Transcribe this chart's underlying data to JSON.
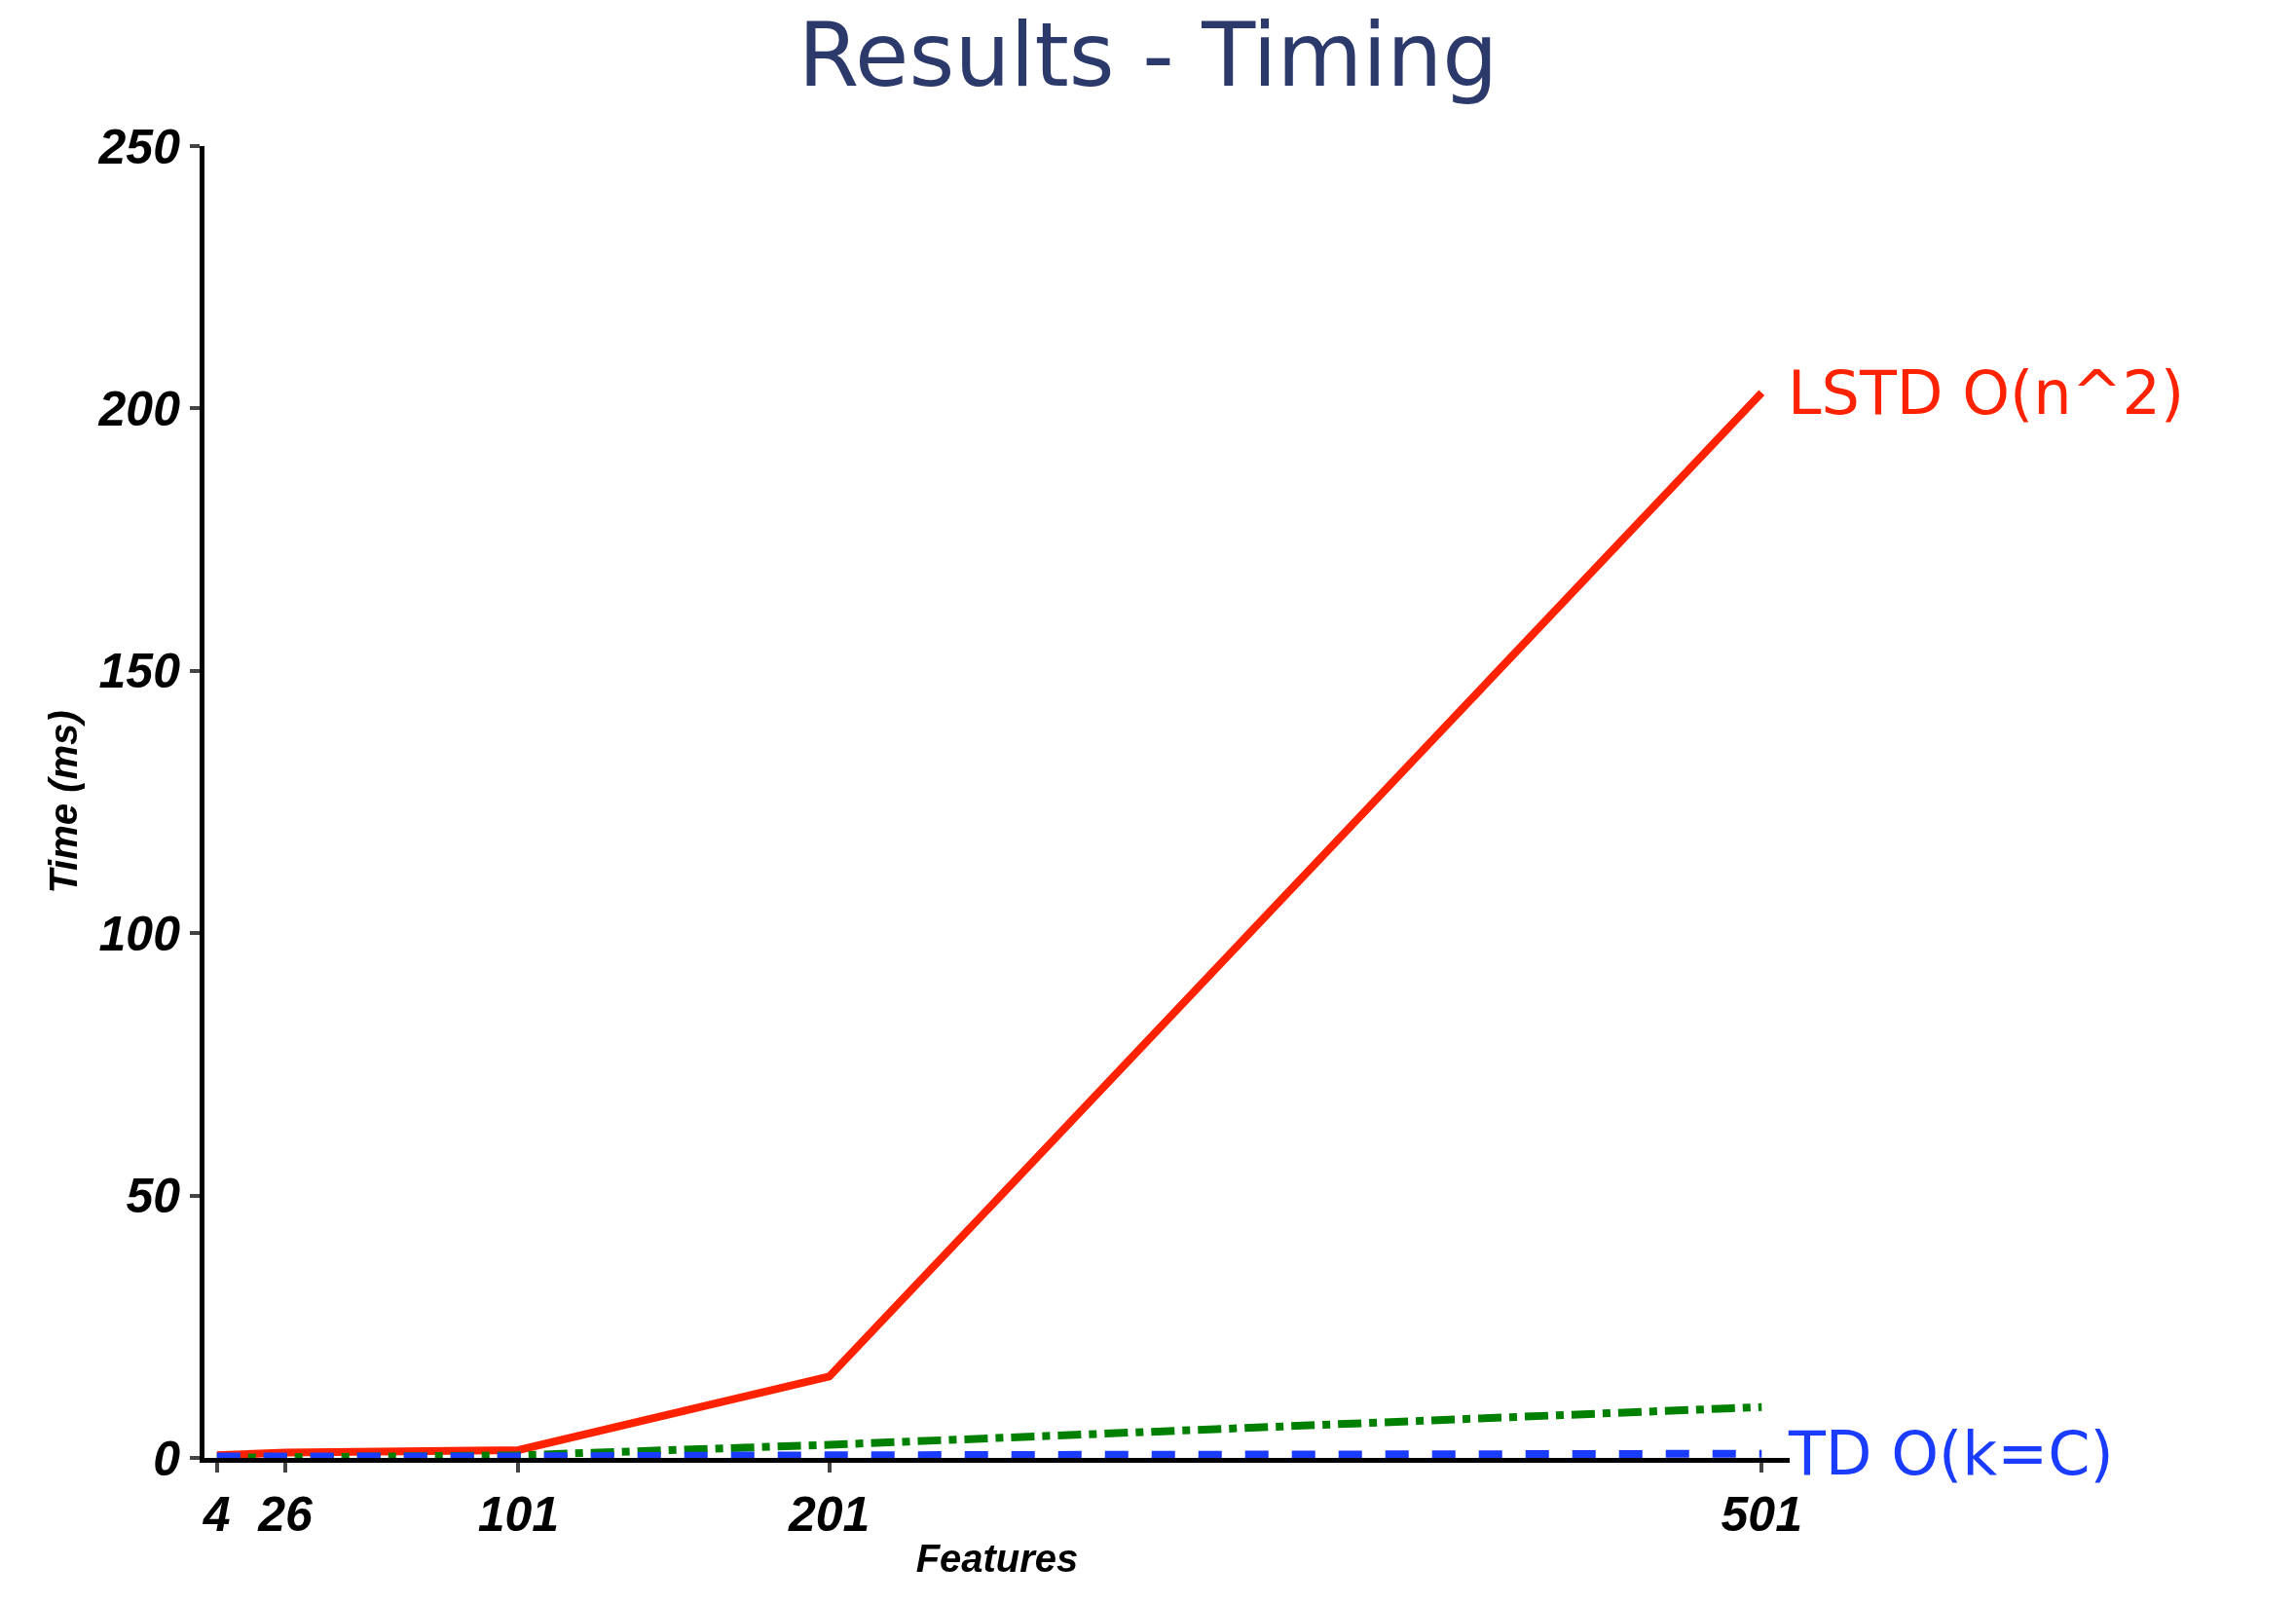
{
  "chart_data": {
    "type": "line",
    "title": "Results - Timing",
    "xlabel": "Features",
    "ylabel": "Time (ms)",
    "x": [
      4,
      26,
      101,
      201,
      501
    ],
    "series": [
      {
        "name": "LSTD O(n^2)",
        "color": "#ff2200",
        "values": [
          0.5,
          1,
          1.5,
          15.5,
          203
        ],
        "line_style": "solid"
      },
      {
        "color": "#008000",
        "values": [
          0.1,
          0.1,
          0.5,
          2.5,
          9.7
        ],
        "line_style": "dashdot"
      },
      {
        "name": "TD O(k=C)",
        "color": "#1a3cff",
        "values": [
          0.3,
          0.3,
          0.3,
          0.5,
          0.8
        ],
        "line_style": "dashed"
      }
    ],
    "xlim": [
      0,
      510
    ],
    "xticks": [
      4,
      26,
      101,
      201,
      501
    ],
    "ylim": [
      0,
      250
    ],
    "yticks": [
      0,
      50,
      100,
      150,
      200,
      250
    ],
    "legend": false,
    "marker": "none"
  }
}
